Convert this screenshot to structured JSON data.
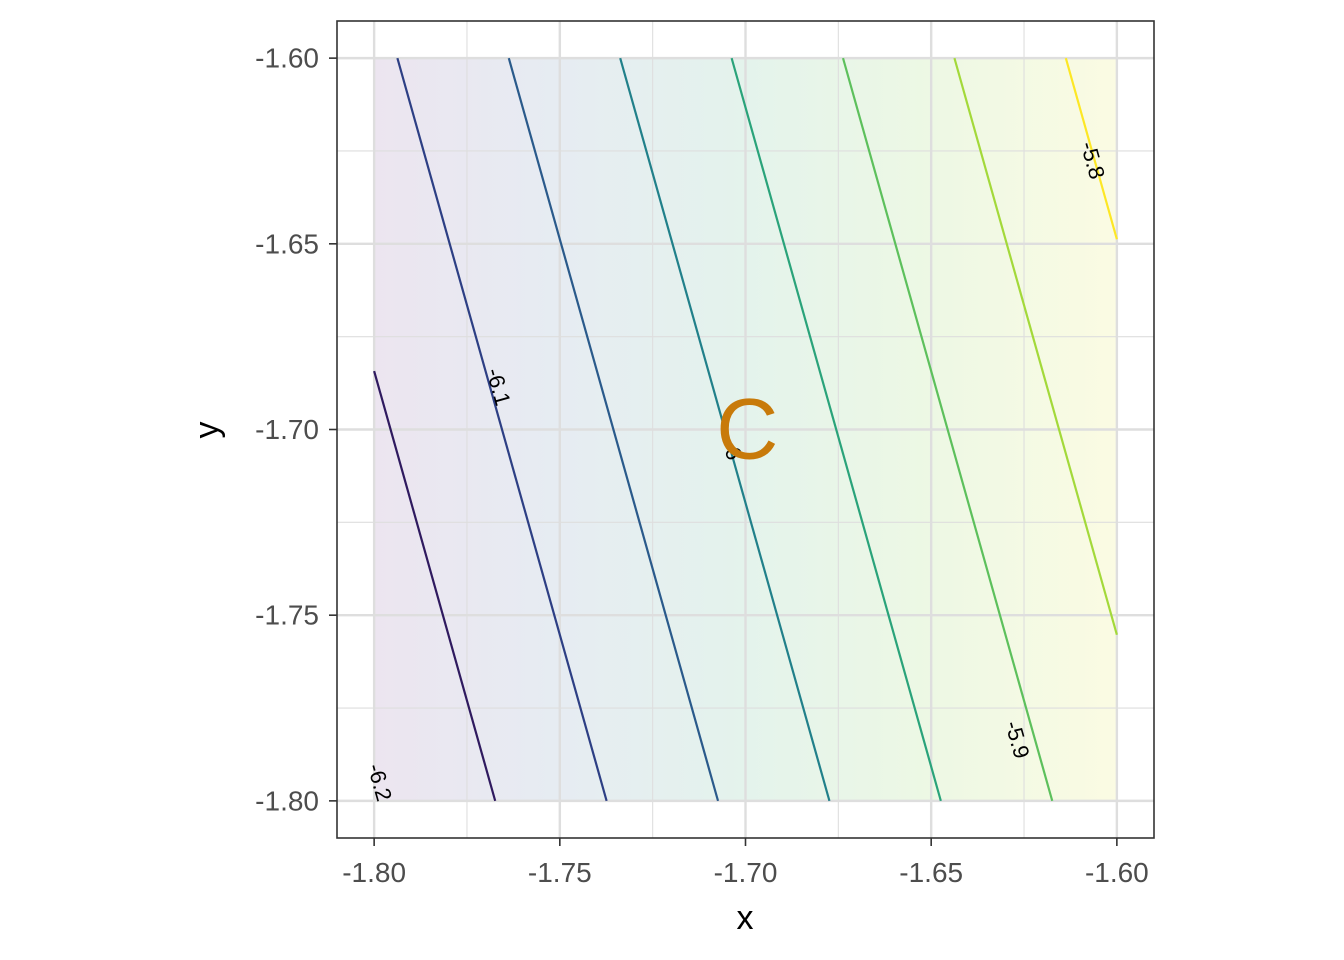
{
  "chart_data": {
    "type": "contour",
    "title": "",
    "xlabel": "x",
    "ylabel": "y",
    "xlim": [
      -1.81,
      -1.59
    ],
    "ylim": [
      -1.81,
      -1.59
    ],
    "x_ticks": [
      "-1.80",
      "-1.75",
      "-1.70",
      "-1.65",
      "-1.60"
    ],
    "y_ticks": [
      "-1.60",
      "-1.65",
      "-1.70",
      "-1.75",
      "-1.80"
    ],
    "grid": true,
    "legend": "none",
    "field_region": {
      "x": [
        -1.8,
        -1.6
      ],
      "y": [
        -1.8,
        -1.6
      ]
    },
    "fill_gradient": [
      "#ece5f0",
      "#e6ecf2",
      "#e4f3ec",
      "#edf8e4",
      "#fbfbe3"
    ],
    "contours": [
      {
        "value": -6.2,
        "color": "#440154",
        "x_at_bottom": -1.8074,
        "slope": 3.55
      },
      {
        "value": -6.15,
        "color": "#2f1a5f",
        "x_at_bottom": -1.7674,
        "slope": 3.55
      },
      {
        "value": -6.1,
        "color": "#2d3f84",
        "x_at_bottom": -1.7374,
        "slope": 3.55
      },
      {
        "value": -6.05,
        "color": "#2a5a8b",
        "x_at_bottom": -1.7074,
        "slope": 3.55
      },
      {
        "value": -6.0,
        "color": "#21808a",
        "x_at_bottom": -1.6774,
        "slope": 3.55
      },
      {
        "value": -5.95,
        "color": "#2aa37a",
        "x_at_bottom": -1.6474,
        "slope": 3.55
      },
      {
        "value": -5.9,
        "color": "#5dc05c",
        "x_at_bottom": -1.6174,
        "slope": 3.55
      },
      {
        "value": -5.85,
        "color": "#a3d93a",
        "x_at_bottom": -1.5874,
        "slope": 3.55
      },
      {
        "value": -5.8,
        "color": "#fde725",
        "x_at_bottom": -1.5574,
        "slope": 3.55
      }
    ],
    "contour_labels": [
      {
        "text": "-6.2",
        "x": -1.7985,
        "y": -1.795
      },
      {
        "text": "-6.1",
        "x": -1.7665,
        "y": -1.6885
      },
      {
        "text": "-6",
        "x": -1.7035,
        "y": -1.7055
      },
      {
        "text": "-5.9",
        "x": -1.6268,
        "y": -1.7835
      },
      {
        "text": "-5.8",
        "x": -1.6065,
        "y": -1.6275
      }
    ],
    "marker": {
      "text": "C",
      "x": -1.6995,
      "y": -1.7,
      "color": "#c87a0a"
    }
  }
}
